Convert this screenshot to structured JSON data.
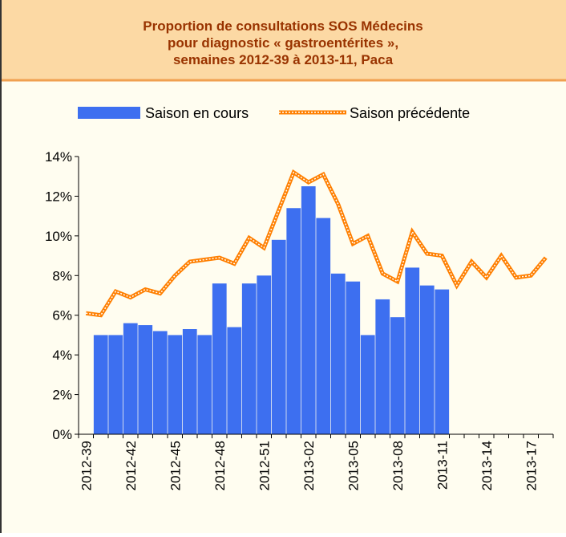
{
  "chart_data": {
    "type": "bar-line",
    "title": [
      "Proportion de consultations SOS Médecins",
      "pour diagnostic « gastroentérites »,",
      "semaines 2012-39 à 2013-11, Paca"
    ],
    "categories": [
      "2012-39",
      null,
      null,
      "2012-42",
      null,
      null,
      "2012-45",
      null,
      null,
      "2012-48",
      null,
      null,
      "2012-51",
      null,
      null,
      "2013-02",
      null,
      null,
      "2013-05",
      null,
      null,
      "2013-08",
      null,
      null,
      "2013-11",
      null,
      null,
      "2013-14",
      null,
      null,
      "2013-17",
      null
    ],
    "series": [
      {
        "name": "Saison en cours",
        "type": "bar",
        "color": "#3d6ff0",
        "values": [
          null,
          5.0,
          5.0,
          5.6,
          5.5,
          5.2,
          5.0,
          5.3,
          5.0,
          7.6,
          5.4,
          7.6,
          8.0,
          9.8,
          11.4,
          12.5,
          10.9,
          8.1,
          7.7,
          5.0,
          6.8,
          5.9,
          8.4,
          7.5,
          7.3,
          null,
          null,
          null,
          null,
          null,
          null,
          null
        ]
      },
      {
        "name": "Saison précédente",
        "type": "line",
        "color": "#ff7f00",
        "values": [
          6.1,
          6.0,
          7.2,
          6.9,
          7.3,
          7.1,
          8.0,
          8.7,
          8.8,
          8.9,
          8.6,
          9.9,
          9.4,
          11.3,
          13.2,
          12.7,
          13.1,
          11.6,
          9.6,
          10.0,
          8.1,
          7.7,
          10.2,
          9.1,
          9.0,
          7.5,
          8.7,
          7.9,
          9.0,
          7.9,
          8.0,
          8.9
        ]
      }
    ],
    "ylim": [
      0,
      14
    ],
    "yticks": [
      {
        "value": 0,
        "label": "0%"
      },
      {
        "value": 2,
        "label": "2%"
      },
      {
        "value": 4,
        "label": "4%"
      },
      {
        "value": 6,
        "label": "6%"
      },
      {
        "value": 8,
        "label": "8%"
      },
      {
        "value": 10,
        "label": "10%"
      },
      {
        "value": 12,
        "label": "12%"
      },
      {
        "value": 14,
        "label": "14%"
      }
    ]
  }
}
